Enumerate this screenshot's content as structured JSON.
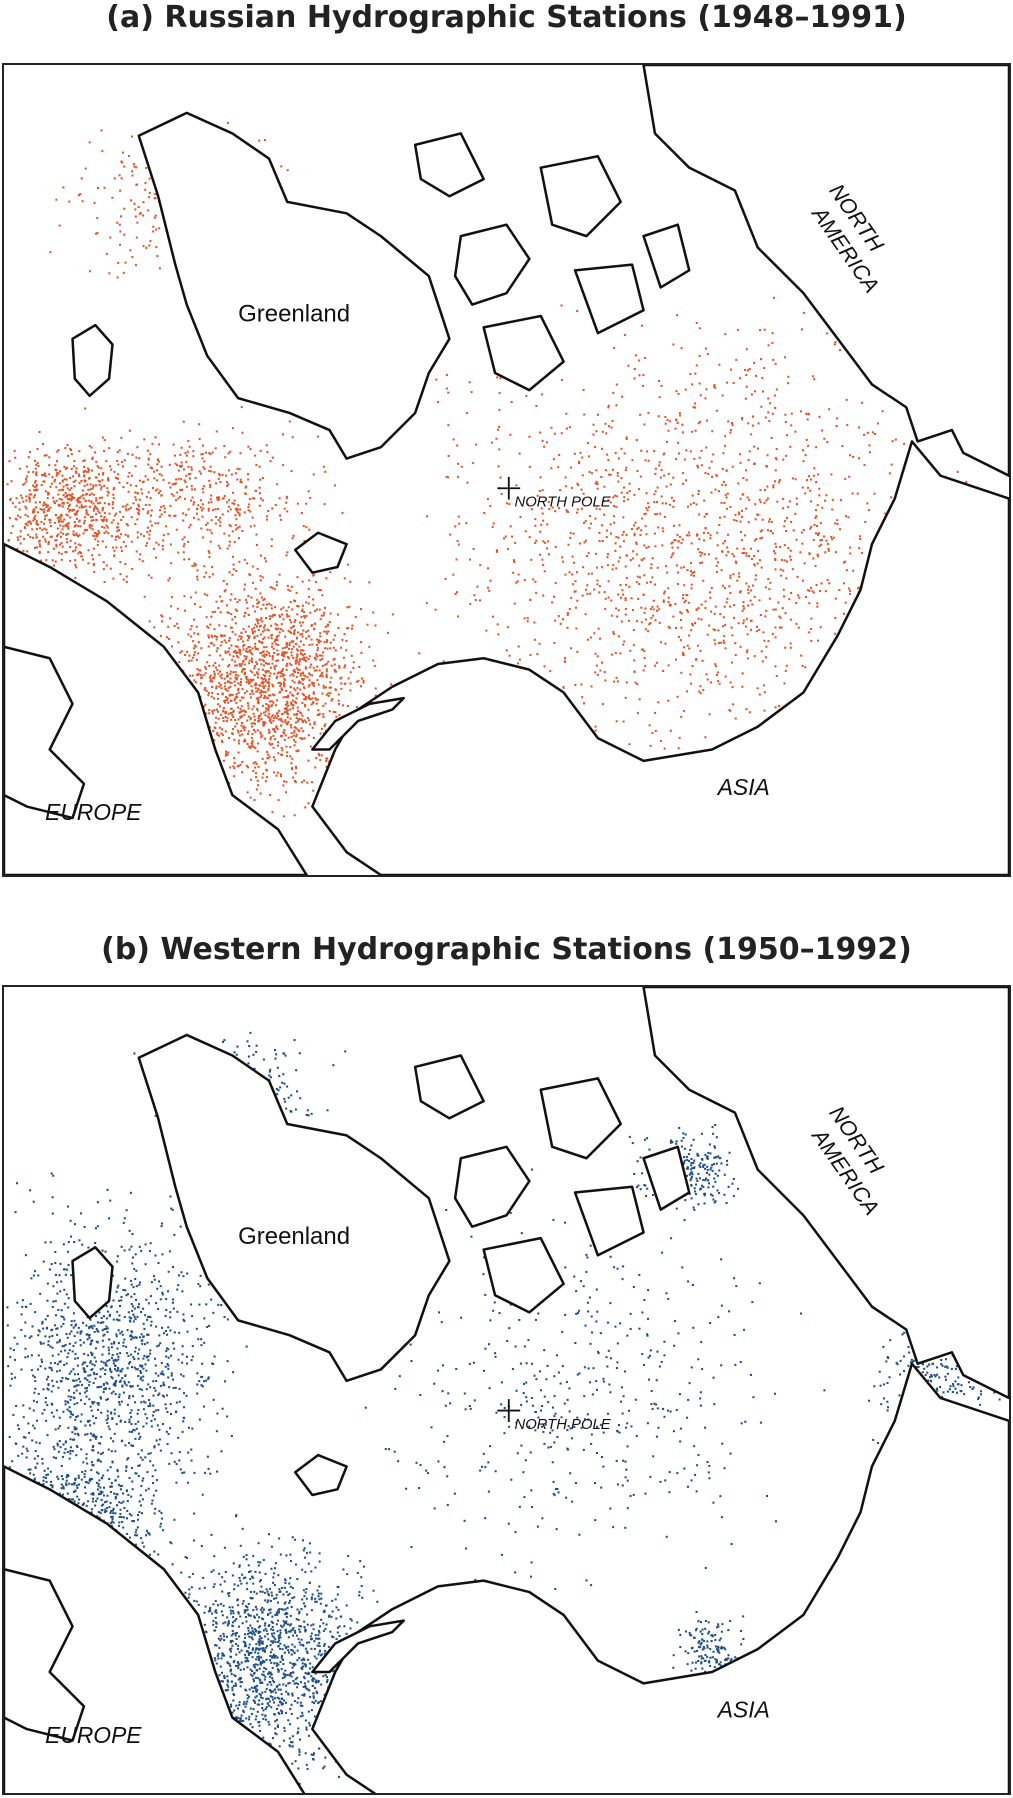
{
  "panels": [
    {
      "title": "(a) Russian Hydrographic Stations (1948–1991)",
      "dot_color": "#e2552b",
      "labels": {
        "greenland": "Greenland",
        "north_america": [
          "NORTH",
          "AMERICA"
        ],
        "north_pole": "NORTH POLE",
        "europe": "EUROPE",
        "asia": "ASIA"
      }
    },
    {
      "title": "(b) Western Hydrographic Stations (1950–1992)",
      "dot_color": "#1f4f86",
      "labels": {
        "greenland": "Greenland",
        "north_america": [
          "NORTH",
          "AMERICA"
        ],
        "north_pole": "NORTH POLE",
        "europe": "EUROPE",
        "asia": "ASIA"
      }
    }
  ]
}
